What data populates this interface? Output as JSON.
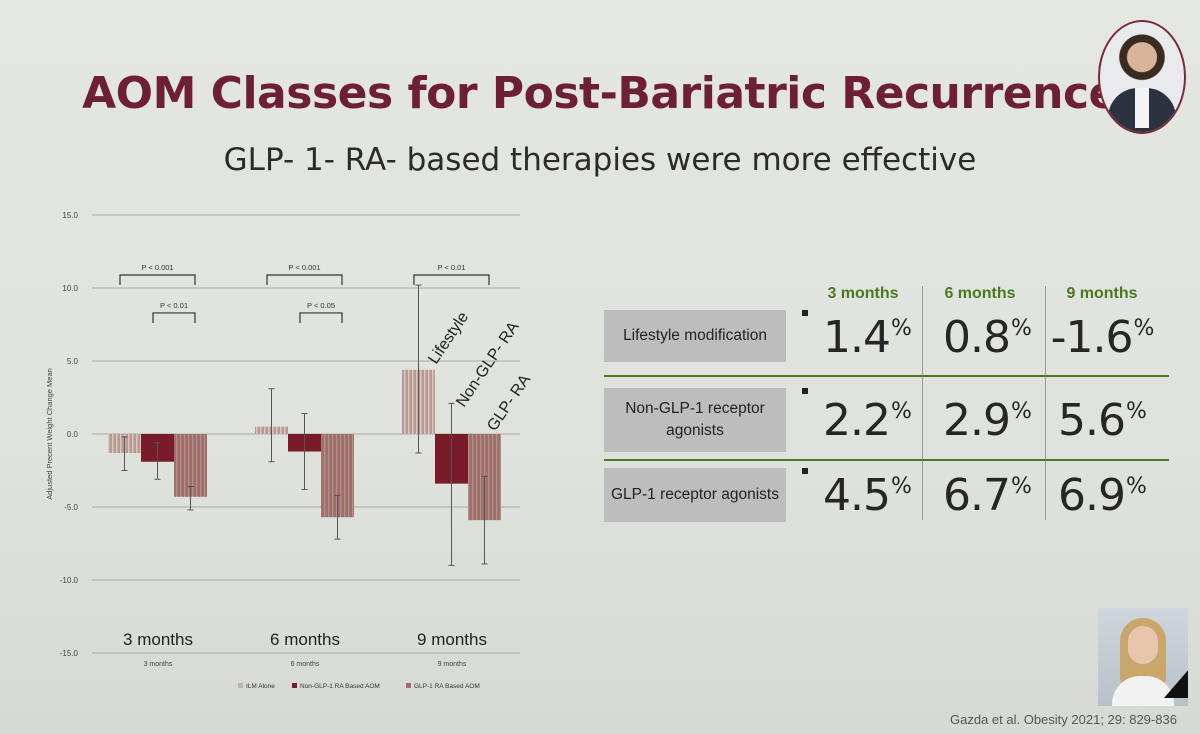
{
  "slide": {
    "title": "AOM Classes for Post-Bariatric Recurrence",
    "subtitle": "GLP- 1- RA- based therapies were more effective",
    "citation": "Gazda et al. Obesity 2021; 29: 829-836"
  },
  "chart_data": {
    "type": "bar",
    "ylabel": "Adjusted Precent Weight Change Mean",
    "ylim": [
      -15,
      15
    ],
    "yticks": [
      "15.0",
      "10.0",
      "5.0",
      "0.0",
      "-5.0",
      "-10.0",
      "-15.0"
    ],
    "grid": true,
    "categories": [
      "3 months",
      "6 months",
      "9 months"
    ],
    "category_sublabels": [
      "3 months",
      "6 months",
      "9 months"
    ],
    "series": [
      {
        "name": "ILM Alone",
        "values": [
          -1.3,
          0.5,
          4.4
        ],
        "error": [
          [
            -2.5,
            -0.2
          ],
          [
            -1.9,
            3.1
          ],
          [
            -1.3,
            10.2
          ]
        ],
        "color": "#b69a93"
      },
      {
        "name": "Non-GLP-1 RA Based AOM",
        "values": [
          -1.9,
          -1.2,
          -3.4
        ],
        "error": [
          [
            -3.1,
            -0.6
          ],
          [
            -3.8,
            1.4
          ],
          [
            -9.0,
            2.1
          ]
        ],
        "color": "#7a1b2a"
      },
      {
        "name": "GLP-1 RA Based AOM",
        "values": [
          -4.3,
          -5.7,
          -5.9
        ],
        "error": [
          [
            -5.2,
            -3.6
          ],
          [
            -7.2,
            -4.2
          ],
          [
            -8.9,
            -2.9
          ]
        ],
        "color": "#9e6f6b"
      }
    ],
    "significance": [
      {
        "label": "P < 0.001",
        "group": 0,
        "from": 0,
        "to": 2,
        "level": 10.0
      },
      {
        "label": "P < 0.01",
        "group": 0,
        "from": 1,
        "to": 2,
        "level": 7.4
      },
      {
        "label": "P < 0.001",
        "group": 1,
        "from": 0,
        "to": 2,
        "level": 10.0
      },
      {
        "label": "P < 0.05",
        "group": 1,
        "from": 1,
        "to": 2,
        "level": 7.4
      },
      {
        "label": "P < 0.01",
        "group": 2,
        "from": 0,
        "to": 2,
        "level": 10.0
      }
    ],
    "annotations": [
      "Lifestyle",
      "Non-GLP- RA",
      "GLP- RA"
    ],
    "legend": [
      "ILM Alone",
      "Non-GLP-1 RA Based AOM",
      "GLP-1 RA Based AOM"
    ],
    "legend_position": "bottom"
  },
  "table": {
    "columns": [
      "3 months",
      "6 months",
      "9 months"
    ],
    "rows": [
      {
        "label": "Lifestyle modification",
        "values": [
          "1.4",
          "0.8",
          "-1.6"
        ]
      },
      {
        "label": "Non-GLP-1 receptor agonists",
        "values": [
          "2.2",
          "2.9",
          "5.6"
        ]
      },
      {
        "label": "GLP-1 receptor agonists",
        "values": [
          "4.5",
          "6.7",
          "6.9"
        ]
      }
    ],
    "unit": "%"
  }
}
